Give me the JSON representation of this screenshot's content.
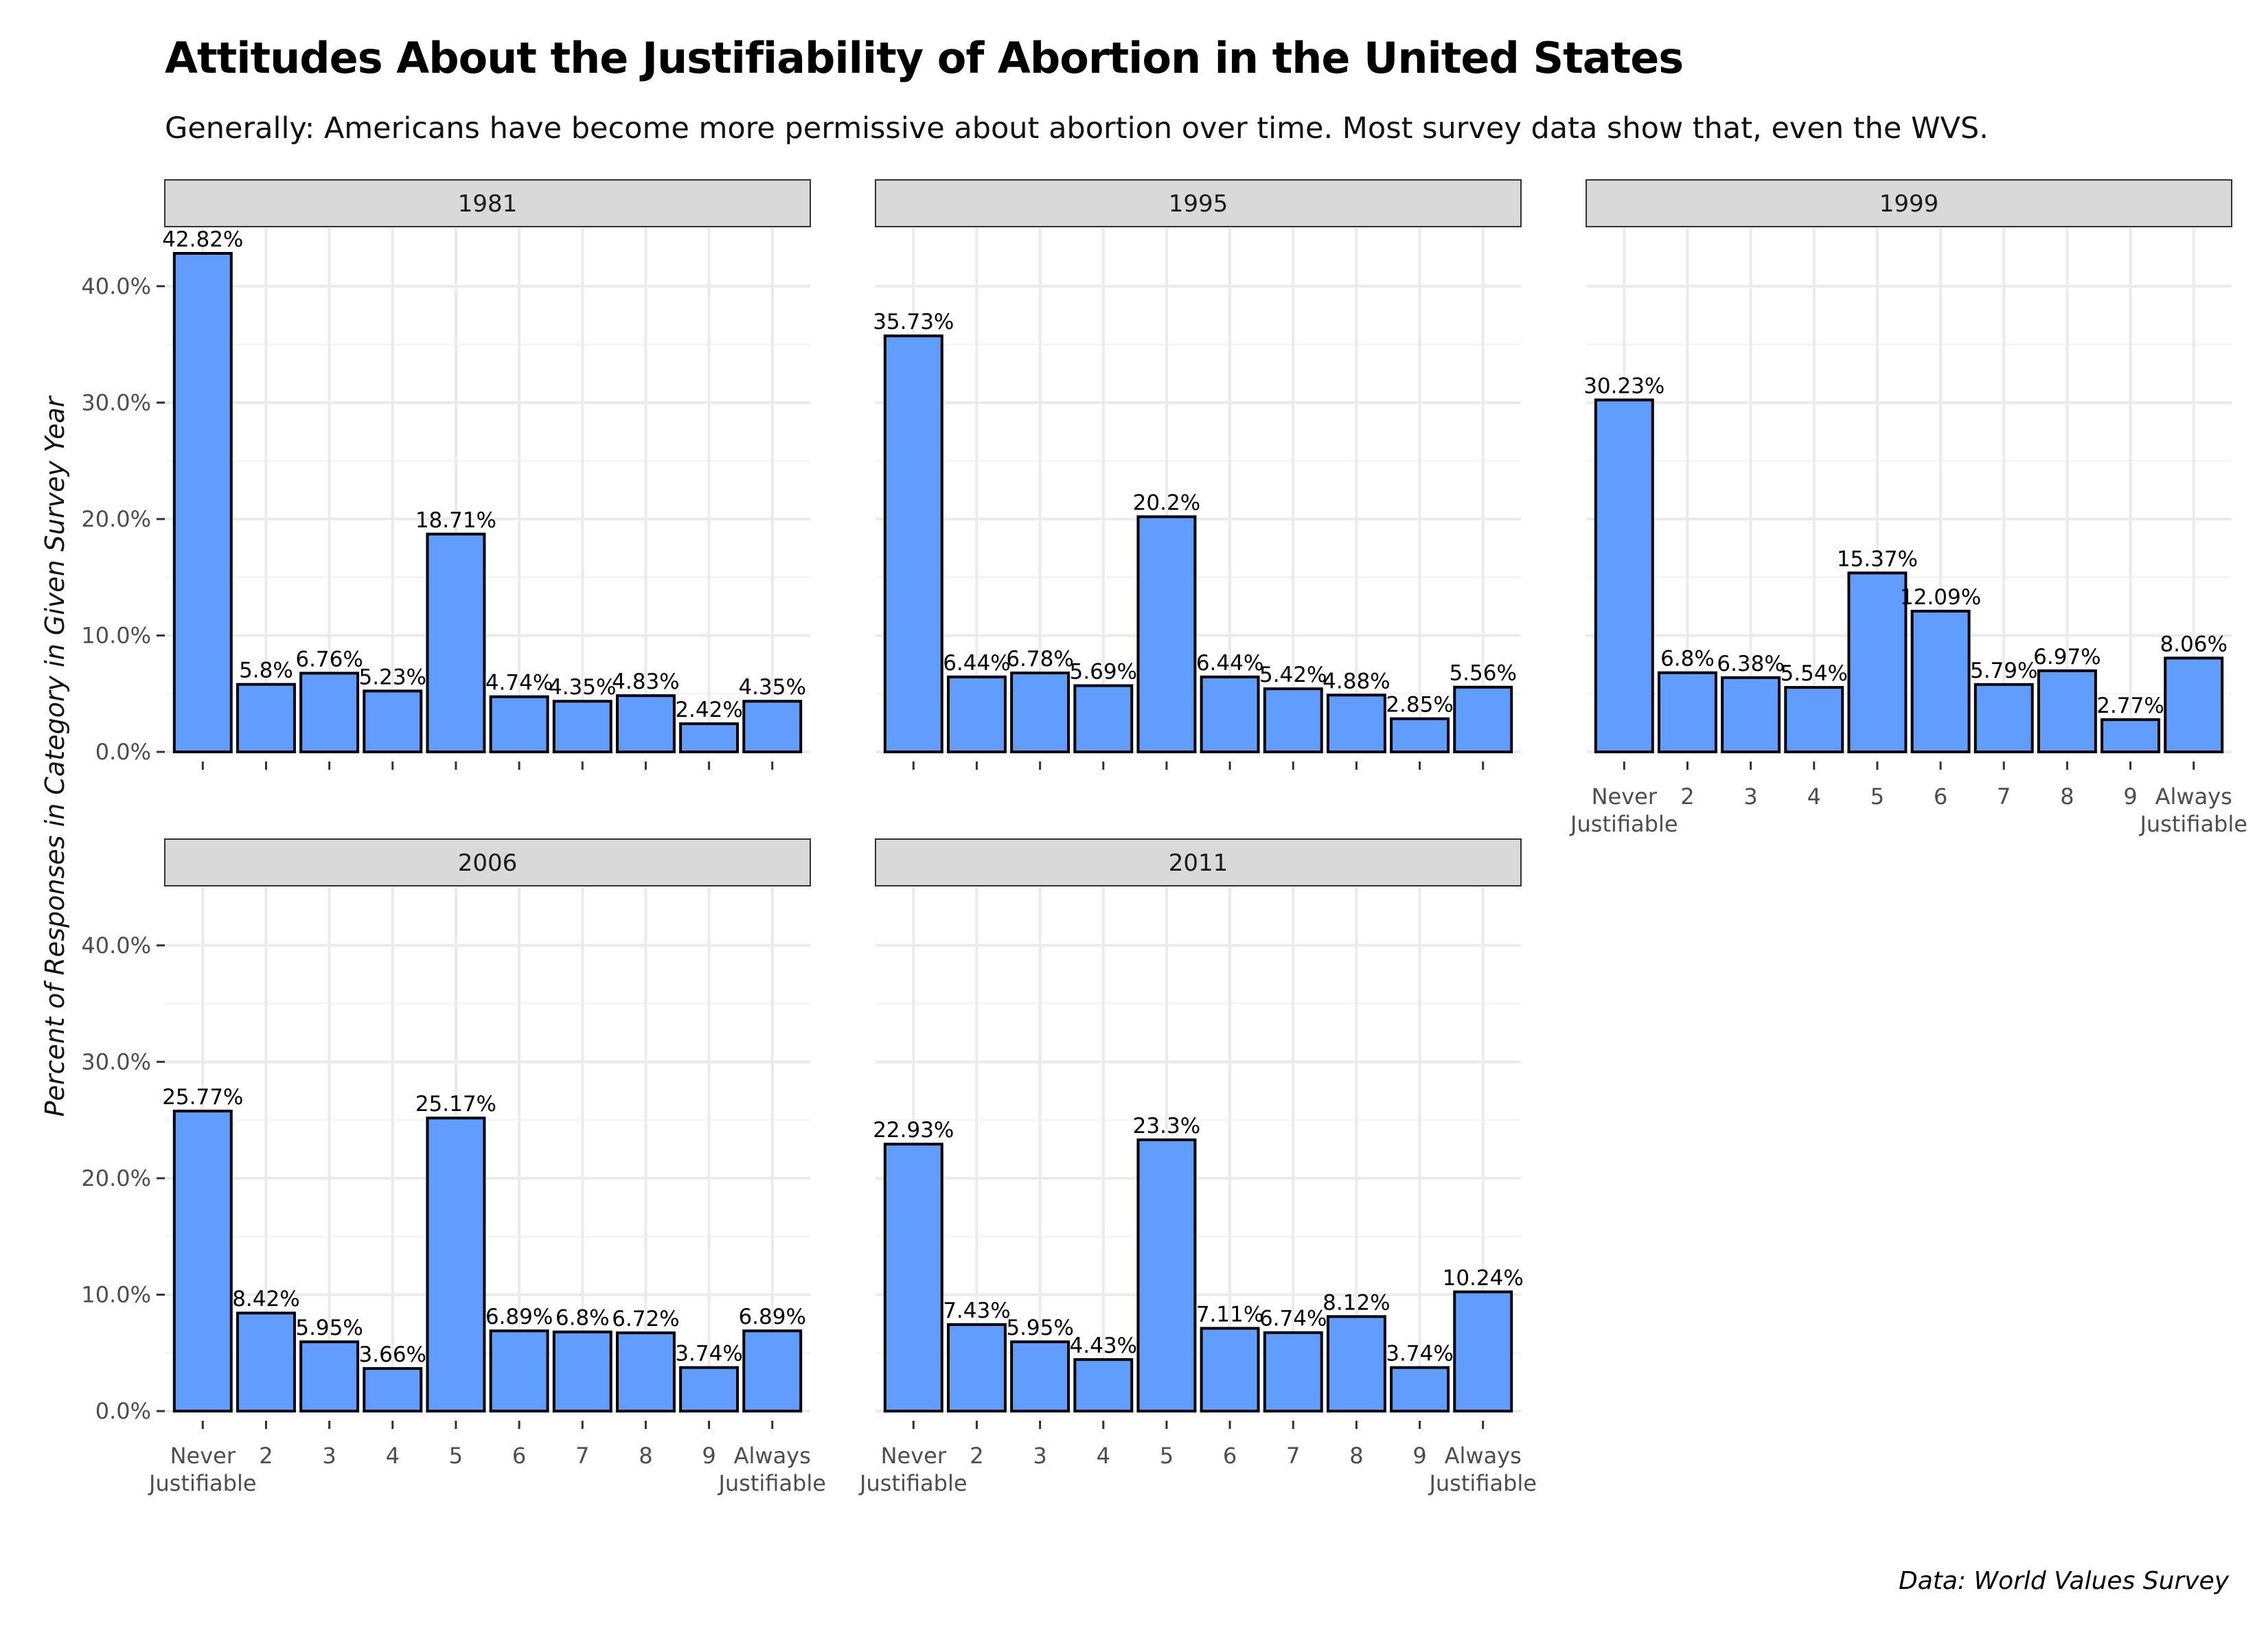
{
  "chart_data": {
    "type": "bar",
    "title": "Attitudes About the Justifiability of Abortion in the United States",
    "subtitle": "Generally: Americans have become more permissive about abortion over time. Most survey data show that, even the WVS.",
    "caption": "Data: World Values Survey",
    "xlabel": "",
    "ylabel": "Percent of Responses in Category in Given Survey Year",
    "ylim": [
      0,
      45
    ],
    "y_ticks": [
      0,
      10,
      20,
      30,
      40
    ],
    "y_tick_labels": [
      "0.0%",
      "10.0%",
      "20.0%",
      "30.0%",
      "40.0%"
    ],
    "grid": true,
    "categories": [
      "Never\nJustifiable",
      "2",
      "3",
      "4",
      "5",
      "6",
      "7",
      "8",
      "9",
      "Always\nJustifiable"
    ],
    "bar_color": "#619CFF",
    "bar_outline": "#000000",
    "panel_strip_color": "#D9D9D9",
    "panels": [
      {
        "name": "1981",
        "values": [
          42.82,
          5.8,
          6.76,
          5.23,
          18.71,
          4.74,
          4.35,
          4.83,
          2.42,
          4.35
        ],
        "labels": [
          "42.82%",
          "5.8%",
          "6.76%",
          "5.23%",
          "18.71%",
          "4.74%",
          "4.35%",
          "4.83%",
          "2.42%",
          "4.35%"
        ]
      },
      {
        "name": "1995",
        "values": [
          35.73,
          6.44,
          6.78,
          5.69,
          20.2,
          6.44,
          5.42,
          4.88,
          2.85,
          5.56
        ],
        "labels": [
          "35.73%",
          "6.44%",
          "6.78%",
          "5.69%",
          "20.2%",
          "6.44%",
          "5.42%",
          "4.88%",
          "2.85%",
          "5.56%"
        ]
      },
      {
        "name": "1999",
        "values": [
          30.23,
          6.8,
          6.38,
          5.54,
          15.37,
          12.09,
          5.79,
          6.97,
          2.77,
          8.06
        ],
        "labels": [
          "30.23%",
          "6.8%",
          "6.38%",
          "5.54%",
          "15.37%",
          "12.09%",
          "5.79%",
          "6.97%",
          "2.77%",
          "8.06%"
        ]
      },
      {
        "name": "2006",
        "values": [
          25.77,
          8.42,
          5.95,
          3.66,
          25.17,
          6.89,
          6.8,
          6.72,
          3.74,
          6.89
        ],
        "labels": [
          "25.77%",
          "8.42%",
          "5.95%",
          "3.66%",
          "25.17%",
          "6.89%",
          "6.8%",
          "6.72%",
          "3.74%",
          "6.89%"
        ]
      },
      {
        "name": "2011",
        "values": [
          22.93,
          7.43,
          5.95,
          4.43,
          23.3,
          7.11,
          6.74,
          8.12,
          3.74,
          10.24
        ],
        "labels": [
          "22.93%",
          "7.43%",
          "5.95%",
          "4.43%",
          "23.3%",
          "7.11%",
          "6.74%",
          "8.12%",
          "3.74%",
          "10.24%"
        ]
      }
    ]
  }
}
